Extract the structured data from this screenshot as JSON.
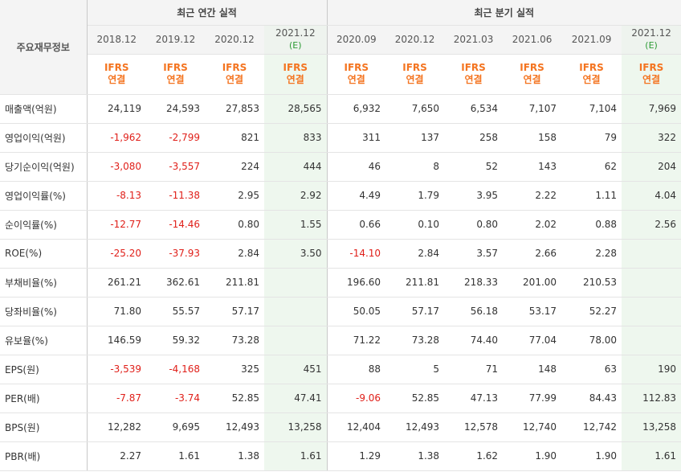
{
  "header": {
    "label": "주요재무정보",
    "annual_title": "최근 연간 실적",
    "quarter_title": "최근 분기 실적"
  },
  "periods": [
    {
      "label": "2018.12",
      "est": "",
      "ifrs": "IFRS",
      "basis": "연결"
    },
    {
      "label": "2019.12",
      "est": "",
      "ifrs": "IFRS",
      "basis": "연결"
    },
    {
      "label": "2020.12",
      "est": "",
      "ifrs": "IFRS",
      "basis": "연결"
    },
    {
      "label": "2021.12",
      "est": "(E)",
      "ifrs": "IFRS",
      "basis": "연결"
    },
    {
      "label": "2020.09",
      "est": "",
      "ifrs": "IFRS",
      "basis": "연결"
    },
    {
      "label": "2020.12",
      "est": "",
      "ifrs": "IFRS",
      "basis": "연결"
    },
    {
      "label": "2021.03",
      "est": "",
      "ifrs": "IFRS",
      "basis": "연결"
    },
    {
      "label": "2021.06",
      "est": "",
      "ifrs": "IFRS",
      "basis": "연결"
    },
    {
      "label": "2021.09",
      "est": "",
      "ifrs": "IFRS",
      "basis": "연결"
    },
    {
      "label": "2021.12",
      "est": "(E)",
      "ifrs": "IFRS",
      "basis": "연결"
    }
  ],
  "rows": [
    {
      "label": "매출액(억원)",
      "values": [
        "24,119",
        "24,593",
        "27,853",
        "28,565",
        "6,932",
        "7,650",
        "6,534",
        "7,107",
        "7,104",
        "7,969"
      ]
    },
    {
      "label": "영업이익(억원)",
      "values": [
        "-1,962",
        "-2,799",
        "821",
        "833",
        "311",
        "137",
        "258",
        "158",
        "79",
        "322"
      ]
    },
    {
      "label": "당기순이익(억원)",
      "values": [
        "-3,080",
        "-3,557",
        "224",
        "444",
        "46",
        "8",
        "52",
        "143",
        "62",
        "204"
      ]
    },
    {
      "label": "영업이익률(%)",
      "values": [
        "-8.13",
        "-11.38",
        "2.95",
        "2.92",
        "4.49",
        "1.79",
        "3.95",
        "2.22",
        "1.11",
        "4.04"
      ]
    },
    {
      "label": "순이익률(%)",
      "values": [
        "-12.77",
        "-14.46",
        "0.80",
        "1.55",
        "0.66",
        "0.10",
        "0.80",
        "2.02",
        "0.88",
        "2.56"
      ]
    },
    {
      "label": "ROE(%)",
      "values": [
        "-25.20",
        "-37.93",
        "2.84",
        "3.50",
        "-14.10",
        "2.84",
        "3.57",
        "2.66",
        "2.28",
        ""
      ]
    },
    {
      "label": "부채비율(%)",
      "values": [
        "261.21",
        "362.61",
        "211.81",
        "",
        "196.60",
        "211.81",
        "218.33",
        "201.00",
        "210.53",
        ""
      ]
    },
    {
      "label": "당좌비율(%)",
      "values": [
        "71.80",
        "55.57",
        "57.17",
        "",
        "50.05",
        "57.17",
        "56.18",
        "53.17",
        "52.27",
        ""
      ]
    },
    {
      "label": "유보율(%)",
      "values": [
        "146.59",
        "59.32",
        "73.28",
        "",
        "71.22",
        "73.28",
        "74.40",
        "77.04",
        "78.00",
        ""
      ]
    },
    {
      "label": "EPS(원)",
      "values": [
        "-3,539",
        "-4,168",
        "325",
        "451",
        "88",
        "5",
        "71",
        "148",
        "63",
        "190"
      ]
    },
    {
      "label": "PER(배)",
      "values": [
        "-7.87",
        "-3.74",
        "52.85",
        "47.41",
        "-9.06",
        "52.85",
        "47.13",
        "77.99",
        "84.43",
        "112.83"
      ]
    },
    {
      "label": "BPS(원)",
      "values": [
        "12,282",
        "9,695",
        "12,493",
        "13,258",
        "12,404",
        "12,493",
        "12,578",
        "12,740",
        "12,742",
        "13,258"
      ]
    },
    {
      "label": "PBR(배)",
      "values": [
        "2.27",
        "1.61",
        "1.38",
        "1.61",
        "1.29",
        "1.38",
        "1.62",
        "1.90",
        "1.90",
        "1.61"
      ]
    }
  ],
  "colors": {
    "negative": "#e0201a",
    "ifrs": "#f47420",
    "estimate_bg": "#eef7ee",
    "estimate_text": "#2c9b34"
  }
}
